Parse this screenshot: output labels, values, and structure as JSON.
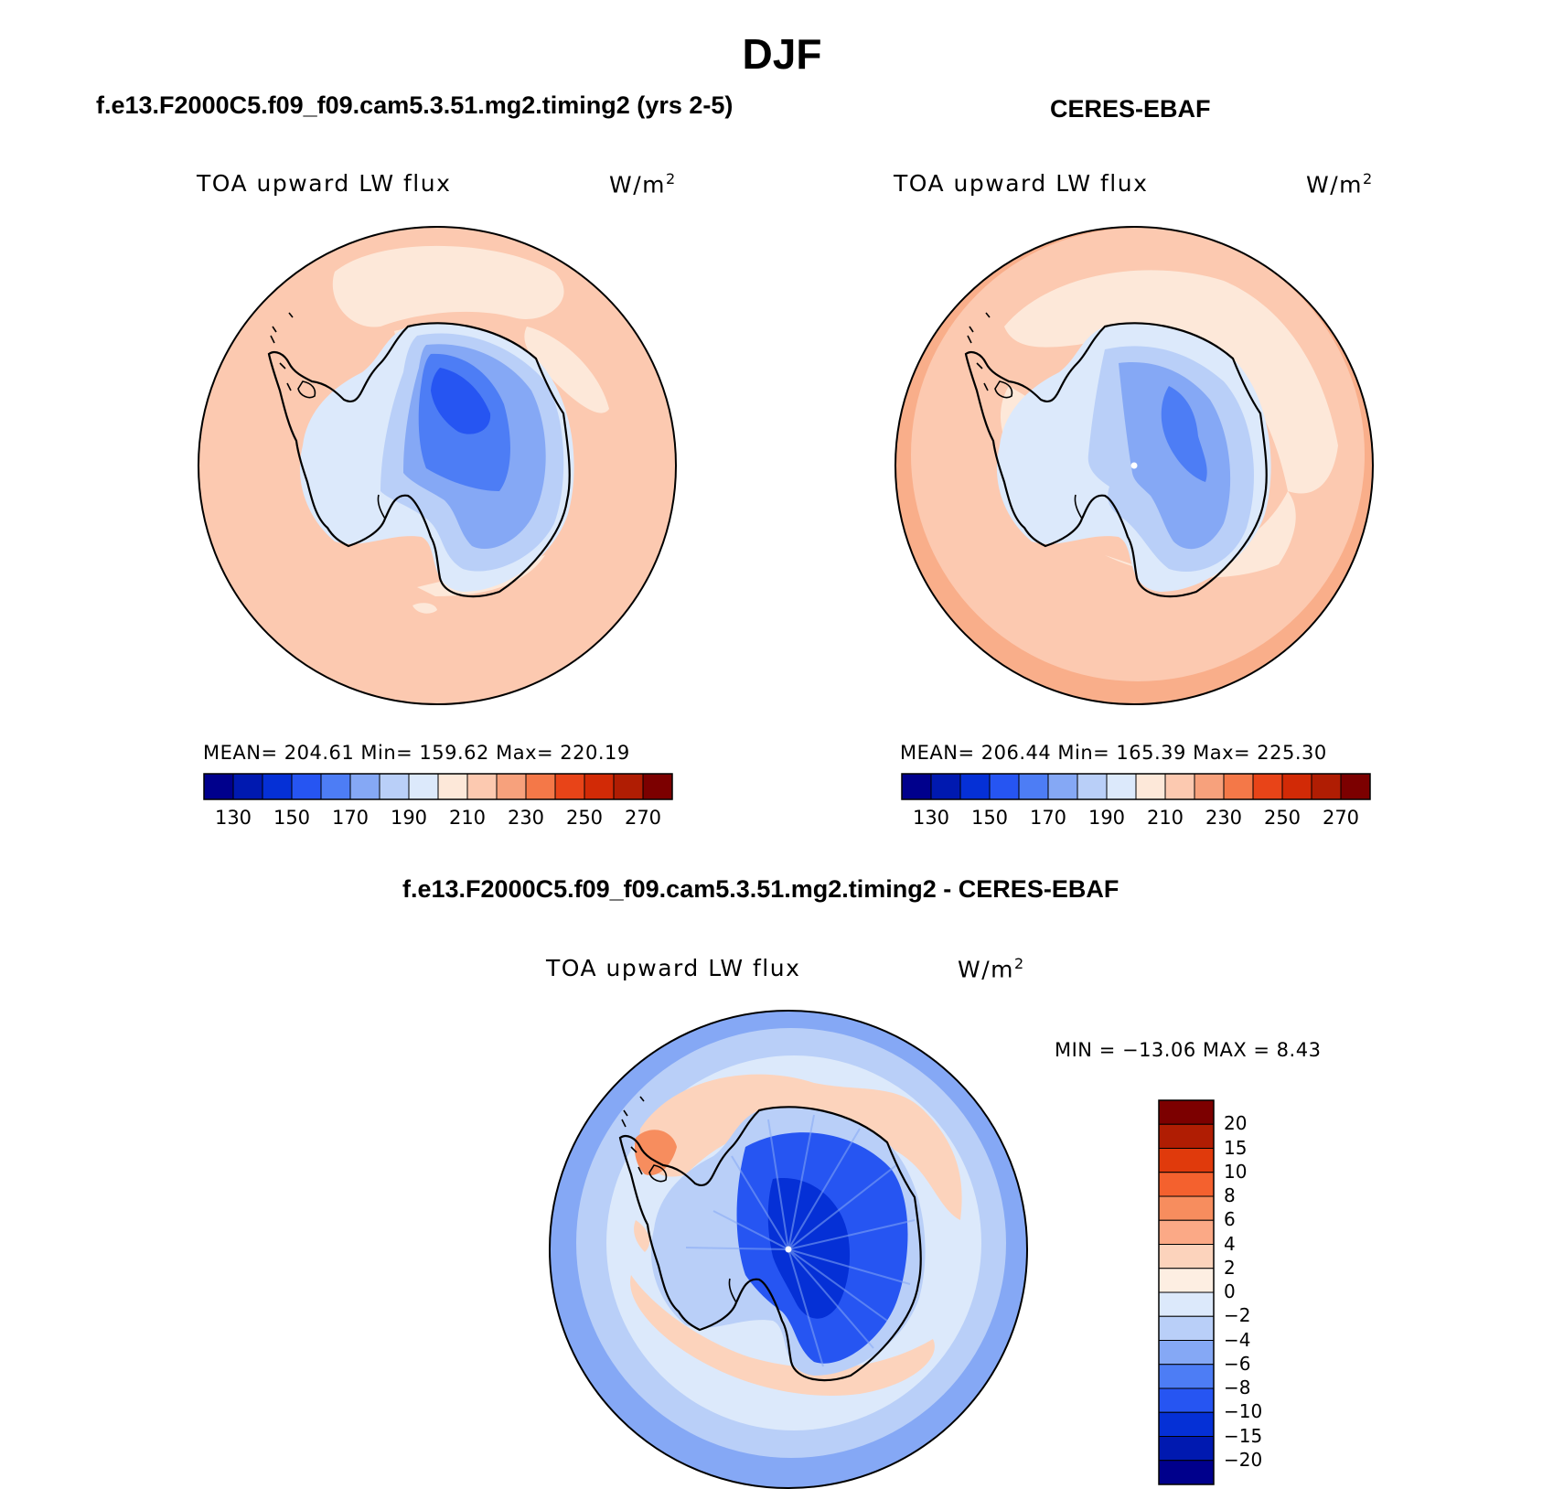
{
  "title": "DJF",
  "panels": [
    {
      "id": "model",
      "case_title": "f.e13.F2000C5.f09_f09.cam5.3.51.mg2.timing2 (yrs 2-5)",
      "variable": "TOA upward LW flux",
      "units": "W/m",
      "units_sup": "2",
      "stats": "MEAN= 204.61   Min= 159.62   Max= 220.19"
    },
    {
      "id": "obs",
      "case_title": "CERES-EBAF",
      "variable": "TOA upward LW flux",
      "units": "W/m",
      "units_sup": "2",
      "stats": "MEAN= 206.44   Min= 165.39   Max= 225.30"
    },
    {
      "id": "diff",
      "case_title": "f.e13.F2000C5.f09_f09.cam5.3.51.mg2.timing2 - CERES-EBAF",
      "variable": "TOA upward LW flux",
      "units": "W/m",
      "units_sup": "2",
      "stats": "MIN = −13.06 MAX =    8.43"
    }
  ],
  "abs_colorbar": {
    "colors": [
      "#00008c",
      "#0019b0",
      "#0530d6",
      "#2655f2",
      "#4d7df5",
      "#85a8f5",
      "#b9cff8",
      "#dce9fb",
      "#fde8d9",
      "#fcc9b0",
      "#f7a17c",
      "#f47848",
      "#e84418",
      "#d22a06",
      "#b01d03",
      "#7c0000"
    ],
    "tick_labels": [
      "130",
      "150",
      "170",
      "190",
      "210",
      "230",
      "250",
      "270"
    ]
  },
  "diff_colorbar": {
    "colors": [
      "#7c0000",
      "#b01d03",
      "#e03a0c",
      "#f4612e",
      "#f78d5e",
      "#fba986",
      "#fcd3bc",
      "#fdeee2",
      "#dce9fb",
      "#b9cff8",
      "#85a8f5",
      "#4d7df5",
      "#2655f2",
      "#0530d6",
      "#0019b0",
      "#00008c"
    ],
    "tick_labels": [
      "20",
      "15",
      "10",
      "8",
      "6",
      "4",
      "2",
      "0",
      "−2",
      "−4",
      "−6",
      "−8",
      "−10",
      "−15",
      "−20"
    ]
  },
  "colors": {
    "ocean_warm": "#fcc9b0",
    "light_warm": "#fde8d9",
    "mid_warm": "#f9ae8a",
    "ice_pale": "#dce9fb",
    "ice_light": "#b9cff8",
    "ice_mid": "#85a8f5",
    "ice_deep": "#4d7df5",
    "ice_deeper": "#2655f2",
    "diff_ocean": "#dce9fb",
    "diff_ocean2": "#b9cff8",
    "diff_ocean3": "#85a8f5",
    "diff_warm": "#fcd3bc",
    "diff_red": "#f78d5e",
    "diff_blue_deep": "#0530d6",
    "diff_blue": "#2655f2"
  }
}
